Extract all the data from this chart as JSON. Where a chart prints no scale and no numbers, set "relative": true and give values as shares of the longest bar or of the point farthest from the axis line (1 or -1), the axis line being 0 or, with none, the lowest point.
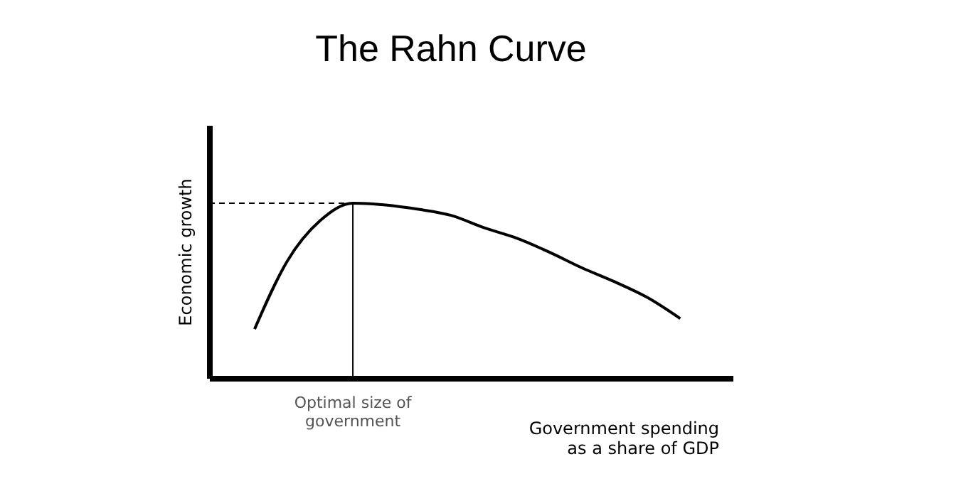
{
  "chart_data": {
    "type": "line",
    "title": "The Rahn Curve",
    "xlabel": "Government spending\nas a share of GDP",
    "ylabel": "Economic growth",
    "relative": true,
    "grid": false,
    "marker": "none",
    "line_style": "solid",
    "categories": [
      null,
      null,
      null,
      null,
      null,
      null,
      null,
      null,
      null,
      null,
      null,
      null,
      null,
      null
    ],
    "series": [
      {
        "color": "#000000",
        "values": [
          0.28,
          0.67,
          0.9,
          1,
          0.99,
          0.965,
          0.93,
          0.86,
          0.8,
          0.72,
          0.63,
          0.55,
          0.46,
          0.34
        ]
      }
    ],
    "ref_lines": [
      {
        "axis": "x",
        "label": "Optimal size of\ngovernment",
        "color": "#000000",
        "line_style": "solid"
      },
      {
        "axis": "y",
        "value": 1,
        "color": "#000000",
        "line_style": "dashed"
      }
    ]
  }
}
